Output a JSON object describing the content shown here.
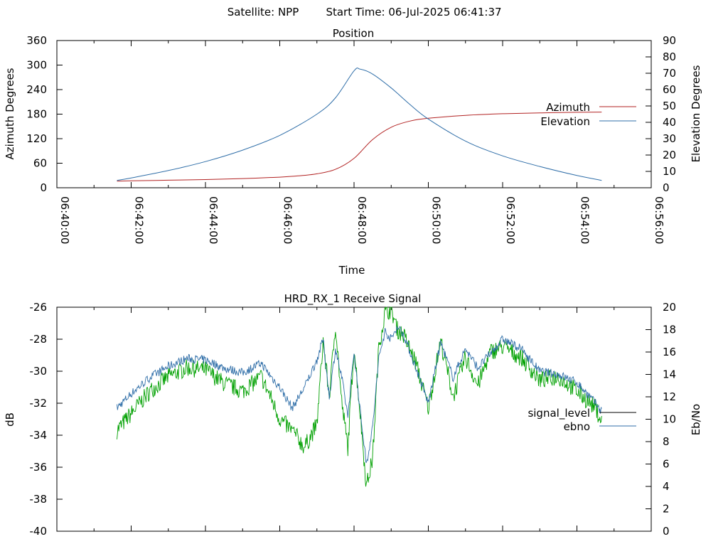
{
  "header": {
    "satellite": "Satellite: NPP",
    "start_time": "Start Time: 06-Jul-2025 06:41:37"
  },
  "colors": {
    "azimuth": "#b22222",
    "elevation": "#2f6ea8",
    "signal_level": "#000000",
    "ebno_fill": "#00a000",
    "ebno_legend": "#2f6ea8"
  },
  "chart_data": [
    {
      "type": "line",
      "title": "Position",
      "xlabel": "Time",
      "ylabel": "Azimuth Degrees",
      "y2label": "Elevation Degrees",
      "xlim": [
        "06:40:00",
        "06:56:00"
      ],
      "x_ticks": [
        "06:40:00",
        "06:42:00",
        "06:44:00",
        "06:46:00",
        "06:48:00",
        "06:50:00",
        "06:52:00",
        "06:54:00",
        "06:56:00"
      ],
      "ylim": [
        0,
        360
      ],
      "y_ticks": [
        "0",
        "60",
        "120",
        "180",
        "240",
        "300",
        "360"
      ],
      "y2lim": [
        0,
        90
      ],
      "y2_ticks": [
        "0",
        "10",
        "20",
        "30",
        "40",
        "50",
        "60",
        "70",
        "80",
        "90"
      ],
      "legend_position": "right",
      "series": [
        {
          "name": "Azimuth",
          "axis": "y",
          "x": [
            "06:41:37",
            "06:42:00",
            "06:43:00",
            "06:44:00",
            "06:45:00",
            "06:46:00",
            "06:46:30",
            "06:47:00",
            "06:47:30",
            "06:48:00",
            "06:48:30",
            "06:49:00",
            "06:49:30",
            "06:50:00",
            "06:51:00",
            "06:52:00",
            "06:53:00",
            "06:54:00",
            "06:54:40"
          ],
          "values": [
            16,
            17,
            18.5,
            20,
            22.5,
            26,
            29,
            34,
            45,
            72,
            118,
            148,
            163,
            170,
            177,
            181,
            183,
            184.5,
            185
          ]
        },
        {
          "name": "Elevation",
          "axis": "y2",
          "x": [
            "06:41:37",
            "06:42:00",
            "06:43:00",
            "06:44:00",
            "06:45:00",
            "06:46:00",
            "06:47:00",
            "06:47:30",
            "06:48:00",
            "06:48:10",
            "06:48:30",
            "06:49:00",
            "06:49:30",
            "06:50:00",
            "06:51:00",
            "06:52:00",
            "06:53:00",
            "06:54:00",
            "06:54:40"
          ],
          "values": [
            4.5,
            6,
            10.5,
            16,
            23,
            32,
            45,
            55,
            71.5,
            72.5,
            69.5,
            61,
            51,
            42,
            28.5,
            19.5,
            13,
            7.5,
            4.5
          ]
        }
      ]
    },
    {
      "type": "line",
      "title": "HRD_RX_1 Receive Signal",
      "xlabel": "",
      "ylabel": "dB",
      "y2label": "Eb/No",
      "xlim": [
        "06:40:00",
        "06:56:00"
      ],
      "ylim": [
        -40,
        -26
      ],
      "y_ticks": [
        "-40",
        "-38",
        "-36",
        "-34",
        "-32",
        "-30",
        "-28",
        "-26"
      ],
      "y2lim": [
        0,
        20
      ],
      "y2_ticks": [
        "0",
        "2",
        "4",
        "6",
        "8",
        "10",
        "12",
        "14",
        "16",
        "18",
        "20"
      ],
      "legend_position": "right",
      "series": [
        {
          "name": "signal_level",
          "axis": "y",
          "x": [
            "06:41:37",
            "06:42:00",
            "06:42:30",
            "06:43:00",
            "06:43:30",
            "06:44:00",
            "06:44:30",
            "06:45:00",
            "06:45:30",
            "06:45:45",
            "06:46:00",
            "06:46:20",
            "06:46:40",
            "06:47:00",
            "06:47:10",
            "06:47:20",
            "06:47:30",
            "06:47:40",
            "06:47:50",
            "06:48:00",
            "06:48:10",
            "06:48:20",
            "06:48:30",
            "06:48:40",
            "06:48:50",
            "06:49:00",
            "06:49:10",
            "06:49:20",
            "06:49:40",
            "06:50:00",
            "06:50:20",
            "06:50:40",
            "06:51:00",
            "06:51:20",
            "06:51:40",
            "06:52:00",
            "06:52:30",
            "06:53:00",
            "06:53:30",
            "06:54:00",
            "06:54:30",
            "06:54:40"
          ],
          "values": [
            -32.3,
            -31.4,
            -30.4,
            -29.7,
            -29.2,
            -29.3,
            -29.8,
            -30.1,
            -29.5,
            -30.3,
            -31.0,
            -32.3,
            -31.0,
            -29.3,
            -28.0,
            -31.6,
            -28.6,
            -30.4,
            -32.8,
            -28.8,
            -32.5,
            -35.8,
            -33.5,
            -29.2,
            -27.5,
            -28.0,
            -27.2,
            -27.7,
            -29.8,
            -32.0,
            -28.2,
            -30.4,
            -28.6,
            -29.8,
            -28.9,
            -28.0,
            -28.6,
            -30.0,
            -30.2,
            -30.7,
            -32.0,
            -32.5
          ]
        },
        {
          "name": "ebno",
          "axis": "y2",
          "x": [
            "06:41:37",
            "06:42:00",
            "06:42:30",
            "06:43:00",
            "06:43:30",
            "06:44:00",
            "06:44:30",
            "06:45:00",
            "06:45:30",
            "06:45:45",
            "06:46:00",
            "06:46:20",
            "06:46:40",
            "06:47:00",
            "06:47:10",
            "06:47:20",
            "06:47:30",
            "06:47:40",
            "06:47:50",
            "06:48:00",
            "06:48:10",
            "06:48:20",
            "06:48:30",
            "06:48:40",
            "06:48:50",
            "06:49:00",
            "06:49:10",
            "06:49:20",
            "06:49:40",
            "06:50:00",
            "06:50:20",
            "06:50:40",
            "06:51:00",
            "06:51:20",
            "06:51:40",
            "06:52:00",
            "06:52:30",
            "06:53:00",
            "06:53:30",
            "06:54:00",
            "06:54:30",
            "06:54:40"
          ],
          "values": [
            9.0,
            10.5,
            12.5,
            13.8,
            14.6,
            14.4,
            13.2,
            12.5,
            13.8,
            12.0,
            10.0,
            9.0,
            7.5,
            9.5,
            17.0,
            12.0,
            18.5,
            11.5,
            7.5,
            16.5,
            10.5,
            4.0,
            6.5,
            16.5,
            19.5,
            19.8,
            18.0,
            17.5,
            15.0,
            11.0,
            17.0,
            12.0,
            15.5,
            13.0,
            16.0,
            16.5,
            15.5,
            13.5,
            13.8,
            12.5,
            11.0,
            9.8
          ]
        }
      ]
    }
  ]
}
